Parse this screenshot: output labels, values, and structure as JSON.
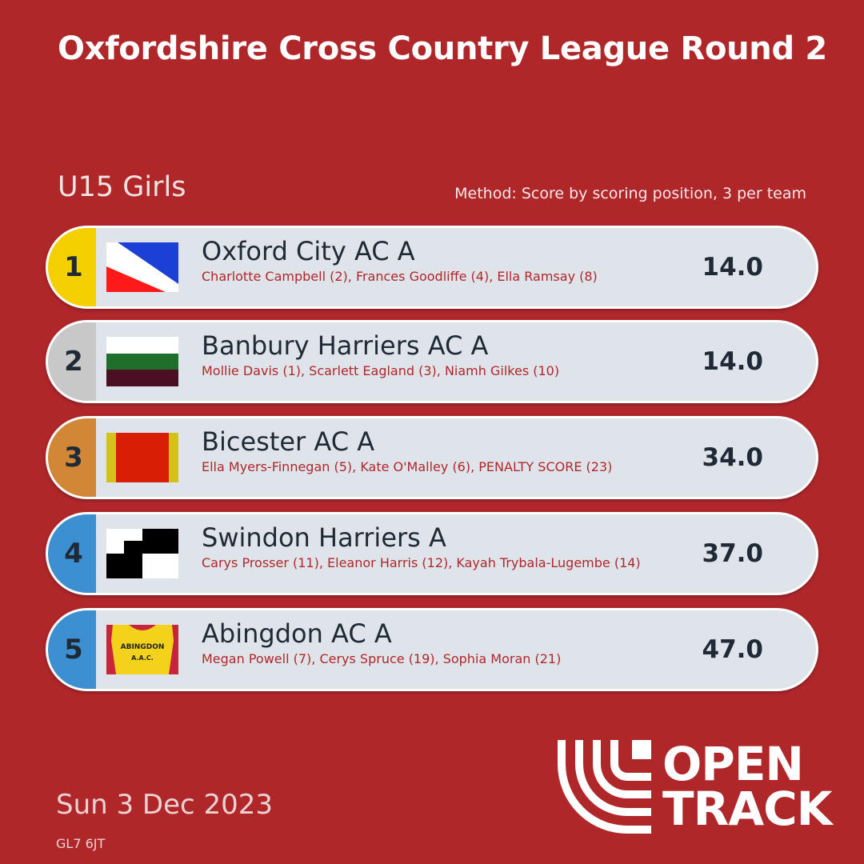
{
  "title": "Oxfordshire Cross Country League Round 2",
  "category": "U15 Girls",
  "method": "Method: Score by scoring position, 3 per team",
  "results": [
    {
      "rank": "1",
      "team": "Oxford City AC A",
      "athletes": "Charlotte Campbell (2), Frances Goodliffe (4), Ella Ramsay (8)",
      "score": "14.0",
      "medal_color": "#f5d000"
    },
    {
      "rank": "2",
      "team": "Banbury Harriers AC A",
      "athletes": "Mollie Davis (1), Scarlett Eagland (3), Niamh Gilkes (10)",
      "score": "14.0",
      "medal_color": "#c8c8c8"
    },
    {
      "rank": "3",
      "team": "Bicester AC A",
      "athletes": "Ella Myers-Finnegan (5), Kate O'Malley (6), PENALTY SCORE (23)",
      "score": "34.0",
      "medal_color": "#d28737"
    },
    {
      "rank": "4",
      "team": "Swindon Harriers A",
      "athletes": "Carys Prosser (11), Eleanor Harris (12), Kayah Trybala-Lugembe (14)",
      "score": "37.0",
      "medal_color": "#3c8fd0"
    },
    {
      "rank": "5",
      "team": "Abingdon AC A",
      "athletes": "Megan Powell (7), Cerys Spruce (19), Sophia Moran (21)",
      "score": "47.0",
      "medal_color": "#3c8fd0"
    }
  ],
  "flag_text": "ABINGDON A.A.C.",
  "date": "Sun 3 Dec 2023",
  "postcode": "GL7 6JT",
  "logo": {
    "line1": "OPEN",
    "line2": "TRACK"
  },
  "colors": {
    "background": "#b0272a",
    "row": "#dfe4ea",
    "text_dark": "#1f2a36",
    "athlete_text": "#b0272a"
  }
}
